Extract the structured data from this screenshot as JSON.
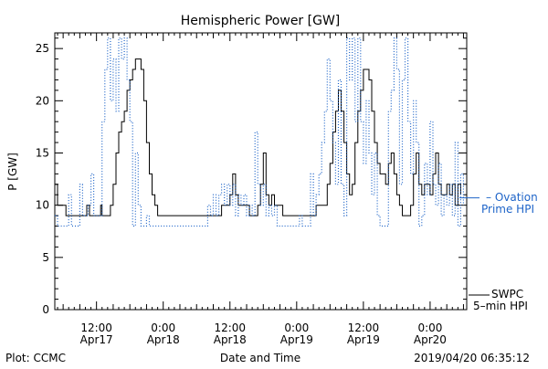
{
  "chart_data": {
    "type": "line",
    "title": "Hemispheric Power [GW]",
    "ylabel": "P [GW]",
    "xlabel": "Date and Time",
    "ylim": [
      0,
      26.5
    ],
    "xlim": [
      "2019-04-17 04:30",
      "2019-04-20 06:35"
    ],
    "yticks": [
      0,
      5,
      10,
      15,
      20,
      25
    ],
    "xticks": [
      {
        "t": "2019-04-17 12:00",
        "time": "12:00",
        "date": "Apr17"
      },
      {
        "t": "2019-04-18 00:00",
        "time": "0:00",
        "date": "Apr18"
      },
      {
        "t": "2019-04-18 12:00",
        "time": "12:00",
        "date": "Apr18"
      },
      {
        "t": "2019-04-19 00:00",
        "time": "0:00",
        "date": "Apr19"
      },
      {
        "t": "2019-04-19 12:00",
        "time": "12:00",
        "date": "Apr19"
      },
      {
        "t": "2019-04-20 00:00",
        "time": "0:00",
        "date": "Apr20"
      }
    ],
    "series": [
      {
        "name": "SWPC 5-min HPI",
        "style": "solid",
        "color": "#000000",
        "points": [
          [
            "2019-04-17 04:30",
            12
          ],
          [
            "2019-04-17 05:00",
            10
          ],
          [
            "2019-04-17 06:00",
            10
          ],
          [
            "2019-04-17 06:30",
            9
          ],
          [
            "2019-04-17 08:00",
            9
          ],
          [
            "2019-04-17 09:00",
            9
          ],
          [
            "2019-04-17 10:00",
            9
          ],
          [
            "2019-04-17 10:15",
            10
          ],
          [
            "2019-04-17 10:45",
            9
          ],
          [
            "2019-04-17 12:30",
            9
          ],
          [
            "2019-04-17 12:45",
            10
          ],
          [
            "2019-04-17 13:00",
            9
          ],
          [
            "2019-04-17 14:00",
            9
          ],
          [
            "2019-04-17 14:30",
            10
          ],
          [
            "2019-04-17 15:00",
            12
          ],
          [
            "2019-04-17 15:30",
            15
          ],
          [
            "2019-04-17 16:00",
            17
          ],
          [
            "2019-04-17 16:30",
            18
          ],
          [
            "2019-04-17 17:00",
            19
          ],
          [
            "2019-04-17 17:30",
            21
          ],
          [
            "2019-04-17 18:00",
            22
          ],
          [
            "2019-04-17 18:30",
            23
          ],
          [
            "2019-04-17 19:00",
            24
          ],
          [
            "2019-04-17 19:30",
            24
          ],
          [
            "2019-04-17 20:00",
            23
          ],
          [
            "2019-04-17 20:30",
            20
          ],
          [
            "2019-04-17 21:00",
            16
          ],
          [
            "2019-04-17 21:30",
            13
          ],
          [
            "2019-04-17 22:00",
            11
          ],
          [
            "2019-04-17 22:30",
            10
          ],
          [
            "2019-04-17 23:00",
            9
          ],
          [
            "2019-04-18 05:00",
            9
          ],
          [
            "2019-04-18 10:00",
            9
          ],
          [
            "2019-04-18 10:30",
            10
          ],
          [
            "2019-04-18 11:30",
            10
          ],
          [
            "2019-04-18 12:00",
            11
          ],
          [
            "2019-04-18 12:30",
            13
          ],
          [
            "2019-04-18 13:00",
            11
          ],
          [
            "2019-04-18 13:30",
            10
          ],
          [
            "2019-04-18 15:00",
            10
          ],
          [
            "2019-04-18 15:30",
            9
          ],
          [
            "2019-04-18 16:30",
            9
          ],
          [
            "2019-04-18 17:00",
            10
          ],
          [
            "2019-04-18 17:30",
            12
          ],
          [
            "2019-04-18 18:00",
            15
          ],
          [
            "2019-04-18 18:30",
            11
          ],
          [
            "2019-04-18 19:00",
            10
          ],
          [
            "2019-04-18 19:30",
            11
          ],
          [
            "2019-04-18 20:00",
            10
          ],
          [
            "2019-04-18 21:00",
            10
          ],
          [
            "2019-04-18 21:30",
            9
          ],
          [
            "2019-04-19 03:00",
            9
          ],
          [
            "2019-04-19 03:30",
            10
          ],
          [
            "2019-04-19 05:00",
            10
          ],
          [
            "2019-04-19 05:30",
            12
          ],
          [
            "2019-04-19 06:00",
            14
          ],
          [
            "2019-04-19 06:30",
            17
          ],
          [
            "2019-04-19 07:00",
            19
          ],
          [
            "2019-04-19 07:30",
            21
          ],
          [
            "2019-04-19 08:00",
            19
          ],
          [
            "2019-04-19 08:30",
            16
          ],
          [
            "2019-04-19 09:00",
            13
          ],
          [
            "2019-04-19 09:30",
            11
          ],
          [
            "2019-04-19 10:00",
            12
          ],
          [
            "2019-04-19 10:30",
            16
          ],
          [
            "2019-04-19 11:00",
            19
          ],
          [
            "2019-04-19 11:30",
            21
          ],
          [
            "2019-04-19 12:00",
            23
          ],
          [
            "2019-04-19 12:30",
            23
          ],
          [
            "2019-04-19 13:00",
            22
          ],
          [
            "2019-04-19 13:30",
            19
          ],
          [
            "2019-04-19 14:00",
            16
          ],
          [
            "2019-04-19 14:30",
            14
          ],
          [
            "2019-04-19 15:00",
            13
          ],
          [
            "2019-04-19 15:30",
            13
          ],
          [
            "2019-04-19 16:00",
            12
          ],
          [
            "2019-04-19 16:30",
            14
          ],
          [
            "2019-04-19 17:00",
            15
          ],
          [
            "2019-04-19 17:30",
            13
          ],
          [
            "2019-04-19 18:00",
            11
          ],
          [
            "2019-04-19 18:30",
            10
          ],
          [
            "2019-04-19 19:00",
            9
          ],
          [
            "2019-04-19 20:00",
            9
          ],
          [
            "2019-04-19 20:30",
            10
          ],
          [
            "2019-04-19 21:00",
            13
          ],
          [
            "2019-04-19 21:30",
            15
          ],
          [
            "2019-04-19 22:00",
            12
          ],
          [
            "2019-04-19 22:30",
            11
          ],
          [
            "2019-04-19 23:00",
            12
          ],
          [
            "2019-04-20 00:00",
            11
          ],
          [
            "2019-04-20 00:30",
            13
          ],
          [
            "2019-04-20 01:00",
            15
          ],
          [
            "2019-04-20 01:30",
            12
          ],
          [
            "2019-04-20 02:00",
            11
          ],
          [
            "2019-04-20 02:30",
            11
          ],
          [
            "2019-04-20 03:00",
            12
          ],
          [
            "2019-04-20 03:30",
            11
          ],
          [
            "2019-04-20 04:00",
            12
          ],
          [
            "2019-04-20 04:30",
            10
          ],
          [
            "2019-04-20 05:00",
            12
          ],
          [
            "2019-04-20 05:30",
            11
          ]
        ]
      },
      {
        "name": "Ovation Prime HPI",
        "style": "dotted",
        "color": "#1e64c8",
        "points": [
          [
            "2019-04-17 04:30",
            9
          ],
          [
            "2019-04-17 05:00",
            8
          ],
          [
            "2019-04-17 06:00",
            8
          ],
          [
            "2019-04-17 07:00",
            11
          ],
          [
            "2019-04-17 07:30",
            8
          ],
          [
            "2019-04-17 08:30",
            8
          ],
          [
            "2019-04-17 09:00",
            12
          ],
          [
            "2019-04-17 09:30",
            9
          ],
          [
            "2019-04-17 10:30",
            10
          ],
          [
            "2019-04-17 11:00",
            13
          ],
          [
            "2019-04-17 11:30",
            9
          ],
          [
            "2019-04-17 12:30",
            9
          ],
          [
            "2019-04-17 13:00",
            18
          ],
          [
            "2019-04-17 13:30",
            23
          ],
          [
            "2019-04-17 14:00",
            26
          ],
          [
            "2019-04-17 14:30",
            20
          ],
          [
            "2019-04-17 15:00",
            24
          ],
          [
            "2019-04-17 15:30",
            19
          ],
          [
            "2019-04-17 16:00",
            26
          ],
          [
            "2019-04-17 16:30",
            24
          ],
          [
            "2019-04-17 17:00",
            26
          ],
          [
            "2019-04-17 17:30",
            22
          ],
          [
            "2019-04-17 18:00",
            18
          ],
          [
            "2019-04-17 18:30",
            8
          ],
          [
            "2019-04-17 19:00",
            15
          ],
          [
            "2019-04-17 19:30",
            10
          ],
          [
            "2019-04-17 20:00",
            8
          ],
          [
            "2019-04-17 21:00",
            9
          ],
          [
            "2019-04-17 21:30",
            8
          ],
          [
            "2019-04-18 06:00",
            8
          ],
          [
            "2019-04-18 07:30",
            8
          ],
          [
            "2019-04-18 08:00",
            10
          ],
          [
            "2019-04-18 08:30",
            9
          ],
          [
            "2019-04-18 09:00",
            11
          ],
          [
            "2019-04-18 09:30",
            9
          ],
          [
            "2019-04-18 10:00",
            11
          ],
          [
            "2019-04-18 10:30",
            12
          ],
          [
            "2019-04-18 11:00",
            10
          ],
          [
            "2019-04-18 11:30",
            12
          ],
          [
            "2019-04-18 12:00",
            10
          ],
          [
            "2019-04-18 12:30",
            12
          ],
          [
            "2019-04-18 13:00",
            9
          ],
          [
            "2019-04-18 13:30",
            11
          ],
          [
            "2019-04-18 14:00",
            10
          ],
          [
            "2019-04-18 14:30",
            11
          ],
          [
            "2019-04-18 15:00",
            9
          ],
          [
            "2019-04-18 15:30",
            10
          ],
          [
            "2019-04-18 16:00",
            9
          ],
          [
            "2019-04-18 16:30",
            17
          ],
          [
            "2019-04-18 17:00",
            12
          ],
          [
            "2019-04-18 17:30",
            10
          ],
          [
            "2019-04-18 18:00",
            12
          ],
          [
            "2019-04-18 18:30",
            9
          ],
          [
            "2019-04-18 19:00",
            10
          ],
          [
            "2019-04-18 19:30",
            9
          ],
          [
            "2019-04-18 20:00",
            10
          ],
          [
            "2019-04-18 20:30",
            8
          ],
          [
            "2019-04-18 21:30",
            8
          ],
          [
            "2019-04-19 00:00",
            8
          ],
          [
            "2019-04-19 00:30",
            9
          ],
          [
            "2019-04-19 01:00",
            8
          ],
          [
            "2019-04-19 02:00",
            8
          ],
          [
            "2019-04-19 02:30",
            13
          ],
          [
            "2019-04-19 03:00",
            9
          ],
          [
            "2019-04-19 03:30",
            11
          ],
          [
            "2019-04-19 04:00",
            13
          ],
          [
            "2019-04-19 04:30",
            16
          ],
          [
            "2019-04-19 05:00",
            19
          ],
          [
            "2019-04-19 05:30",
            24
          ],
          [
            "2019-04-19 06:00",
            20
          ],
          [
            "2019-04-19 06:30",
            16
          ],
          [
            "2019-04-19 07:00",
            12
          ],
          [
            "2019-04-19 07:30",
            22
          ],
          [
            "2019-04-19 08:00",
            12
          ],
          [
            "2019-04-19 08:30",
            9
          ],
          [
            "2019-04-19 09:00",
            26
          ],
          [
            "2019-04-19 09:30",
            22
          ],
          [
            "2019-04-19 10:00",
            26
          ],
          [
            "2019-04-19 10:30",
            18
          ],
          [
            "2019-04-19 11:00",
            26
          ],
          [
            "2019-04-19 11:30",
            18
          ],
          [
            "2019-04-19 12:00",
            14
          ],
          [
            "2019-04-19 12:30",
            20
          ],
          [
            "2019-04-19 13:00",
            15
          ],
          [
            "2019-04-19 13:30",
            11
          ],
          [
            "2019-04-19 14:00",
            15
          ],
          [
            "2019-04-19 14:30",
            9
          ],
          [
            "2019-04-19 15:00",
            8
          ],
          [
            "2019-04-19 16:00",
            8
          ],
          [
            "2019-04-19 16:30",
            19
          ],
          [
            "2019-04-19 17:00",
            21
          ],
          [
            "2019-04-19 17:30",
            26
          ],
          [
            "2019-04-19 18:00",
            23
          ],
          [
            "2019-04-19 18:30",
            12
          ],
          [
            "2019-04-19 19:00",
            22
          ],
          [
            "2019-04-19 19:30",
            26
          ],
          [
            "2019-04-19 20:00",
            18
          ],
          [
            "2019-04-19 20:30",
            13
          ],
          [
            "2019-04-19 21:00",
            20
          ],
          [
            "2019-04-19 21:30",
            16
          ],
          [
            "2019-04-19 22:00",
            8
          ],
          [
            "2019-04-19 22:30",
            9
          ],
          [
            "2019-04-19 23:00",
            14
          ],
          [
            "2019-04-19 23:30",
            11
          ],
          [
            "2019-04-20 00:00",
            18
          ],
          [
            "2019-04-20 00:30",
            12
          ],
          [
            "2019-04-20 01:00",
            10
          ],
          [
            "2019-04-20 01:30",
            14
          ],
          [
            "2019-04-20 02:00",
            9
          ],
          [
            "2019-04-20 02:30",
            11
          ],
          [
            "2019-04-20 03:00",
            10
          ],
          [
            "2019-04-20 03:30",
            12
          ],
          [
            "2019-04-20 04:00",
            9
          ],
          [
            "2019-04-20 04:30",
            16
          ],
          [
            "2019-04-20 05:00",
            8
          ],
          [
            "2019-04-20 05:30",
            13
          ],
          [
            "2019-04-20 06:00",
            10
          ]
        ]
      }
    ],
    "annotations": {
      "ovation_label_1": "– Ovation",
      "ovation_label_2": "Prime HPI",
      "swpc_label_1": "SWPC",
      "swpc_label_2": "5–min HPI"
    }
  },
  "footer": {
    "credit": "Plot: CCMC",
    "timestamp": "2019/04/20 06:35:12"
  }
}
